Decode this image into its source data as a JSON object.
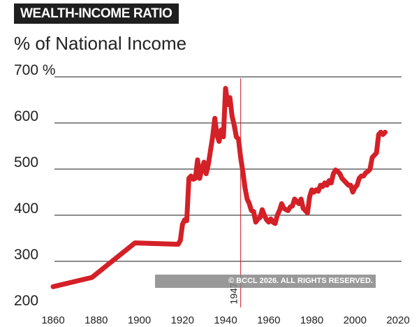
{
  "title": "WEALTH-INCOME RATIO",
  "subtitle": "% of National Income",
  "watermark": "© BCCL 2026. ALL RIGHTS RESERVED.",
  "colors": {
    "line": "#d42027",
    "marker": "#d42027",
    "grid": "#1a1a1a",
    "title_bg": "#1f1f1f"
  },
  "chart_data": {
    "type": "line",
    "title": "WEALTH-INCOME RATIO",
    "subtitle": "% of National Income",
    "xlabel": "",
    "ylabel": "% of National Income",
    "xlim": [
      1860,
      2020
    ],
    "ylim": [
      200,
      700
    ],
    "x_ticks": [
      1860,
      1880,
      1900,
      1920,
      1940,
      1960,
      1980,
      2000,
      2020
    ],
    "y_ticks": [
      {
        "value": 200,
        "label": "200"
      },
      {
        "value": 300,
        "label": "300"
      },
      {
        "value": 400,
        "label": "400"
      },
      {
        "value": 500,
        "label": "500"
      },
      {
        "value": 600,
        "label": "600"
      },
      {
        "value": 700,
        "label": "700 %"
      }
    ],
    "grid": "horizontal",
    "marker": {
      "x": 1947,
      "label": "1947"
    },
    "series": [
      {
        "name": "",
        "x": [
          1860,
          1878,
          1898,
          1918,
          1919,
          1920,
          1921,
          1922,
          1923,
          1924,
          1925,
          1926,
          1927,
          1928,
          1929,
          1930,
          1931,
          1932,
          1933,
          1934,
          1935,
          1936,
          1937,
          1938,
          1939,
          1940,
          1941,
          1942,
          1943,
          1944,
          1945,
          1946,
          1947,
          1948,
          1949,
          1950,
          1951,
          1952,
          1953,
          1954,
          1955,
          1956,
          1957,
          1958,
          1959,
          1960,
          1961,
          1962,
          1963,
          1964,
          1965,
          1966,
          1967,
          1968,
          1969,
          1970,
          1971,
          1972,
          1973,
          1974,
          1975,
          1976,
          1977,
          1978,
          1979,
          1980,
          1981,
          1982,
          1983,
          1984,
          1985,
          1986,
          1987,
          1988,
          1989,
          1990,
          1991,
          1992,
          1993,
          1994,
          1995,
          1996,
          1997,
          1998,
          1999,
          2000,
          2001,
          2002,
          2003,
          2004,
          2005,
          2006,
          2007,
          2008,
          2009,
          2010,
          2011,
          2012,
          2013,
          2014
        ],
        "values": [
          245,
          265,
          340,
          337,
          345,
          380,
          390,
          388,
          480,
          485,
          478,
          480,
          520,
          480,
          500,
          515,
          490,
          510,
          540,
          570,
          610,
          575,
          560,
          585,
          570,
          675,
          640,
          655,
          615,
          595,
          570,
          565,
          525,
          495,
          460,
          435,
          425,
          410,
          408,
          385,
          392,
          395,
          412,
          400,
          390,
          385,
          392,
          385,
          382,
          400,
          410,
          425,
          415,
          412,
          410,
          418,
          420,
          435,
          430,
          425,
          435,
          415,
          410,
          405,
          440,
          455,
          450,
          455,
          452,
          465,
          462,
          470,
          465,
          475,
          470,
          490,
          498,
          495,
          490,
          480,
          475,
          470,
          465,
          465,
          450,
          460,
          465,
          480,
          485,
          485,
          492,
          495,
          500,
          525,
          530,
          535,
          575,
          580,
          575,
          580
        ]
      }
    ]
  }
}
